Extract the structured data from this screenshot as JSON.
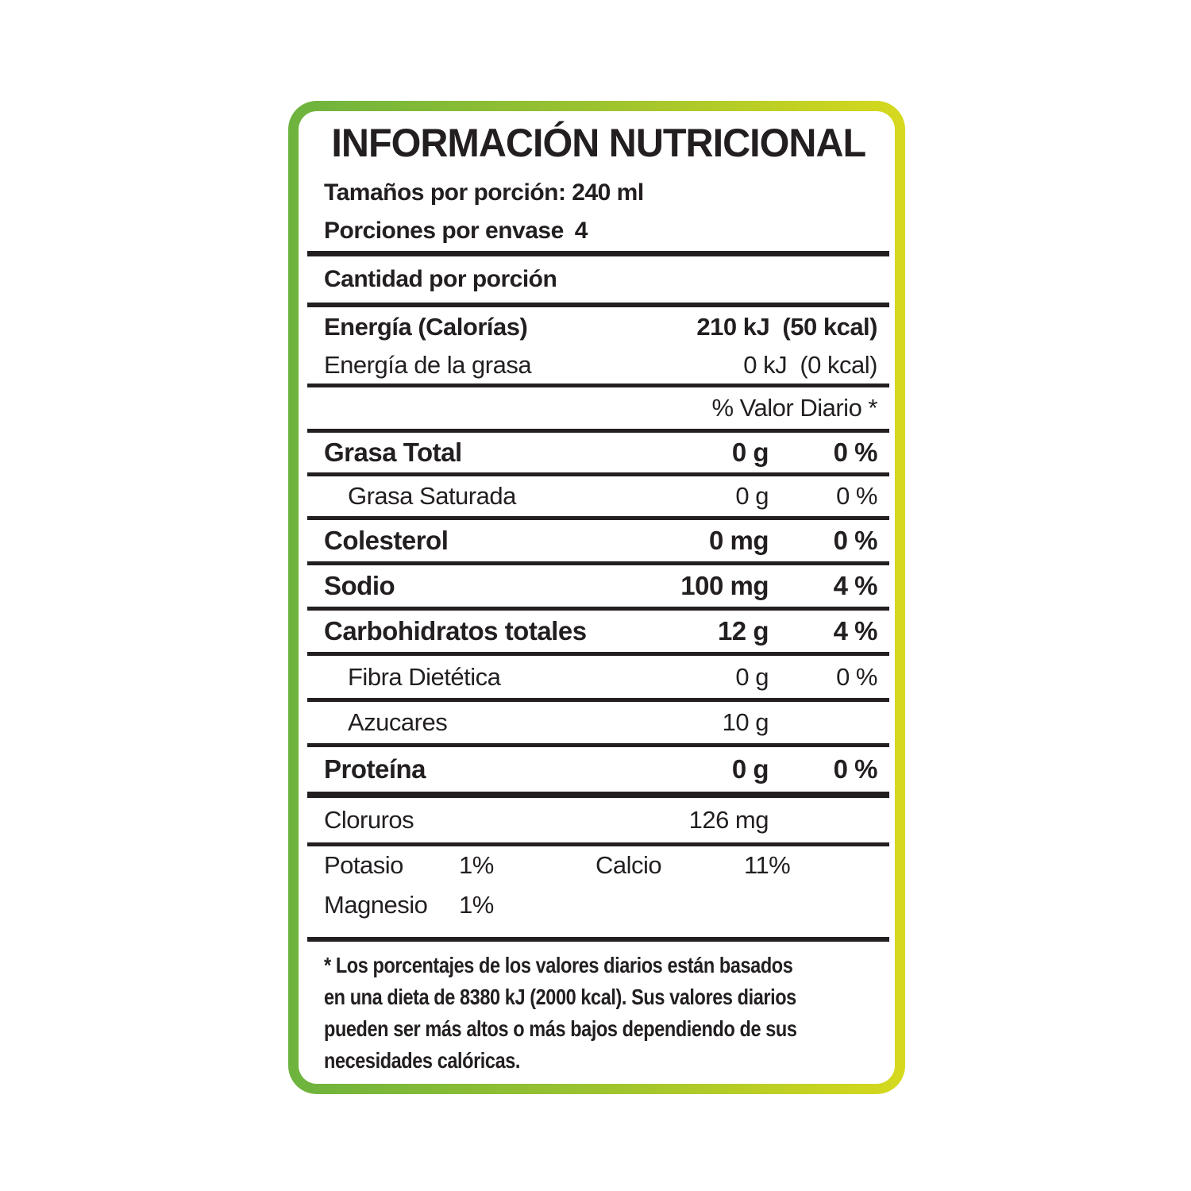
{
  "label": {
    "title": "INFORMACIÓN NUTRICIONAL",
    "serving": {
      "size_label": "Tamaños por porción: 240 ml",
      "per_container_label": "Porciones por envase",
      "per_container_value": "4"
    },
    "amount_header": "Cantidad por porción",
    "energy": {
      "name": "Energía (Calorías)",
      "value": "210 kJ  (50 kcal)"
    },
    "energy_fat": {
      "name": "Energía de la grasa",
      "value": "0 kJ  (0 kcal)"
    },
    "daily_value_header": "% Valor Diario *",
    "nutrients": [
      {
        "name": "Grasa Total",
        "amount": "0 g",
        "dv": "0 %"
      },
      {
        "name": "Grasa Saturada",
        "amount": "0 g",
        "dv": "0 %"
      },
      {
        "name": "Colesterol",
        "amount": "0 mg",
        "dv": "0 %"
      },
      {
        "name": "Sodio",
        "amount": "100 mg",
        "dv": "4 %"
      },
      {
        "name": "Carbohidratos totales",
        "amount": "12 g",
        "dv": "4 %"
      },
      {
        "name": "Fibra Dietética",
        "amount": "0 g",
        "dv": "0 %"
      },
      {
        "name": "Azucares",
        "amount": "10 g",
        "dv": ""
      },
      {
        "name": "Proteína",
        "amount": "0 g",
        "dv": "0 %"
      }
    ],
    "minerals": {
      "cloruros_name": "Cloruros",
      "cloruros_amount": "126 mg",
      "potasio_name": "Potasio",
      "potasio_value": "1%",
      "calcio_name": "Calcio",
      "calcio_value": "11%",
      "magnesio_name": "Magnesio",
      "magnesio_value": "1%"
    },
    "footnote_lines": {
      "l1": "* Los porcentajes de los valores diarios están basados",
      "l2": "en una dieta de 8380 kJ (2000 kcal). Sus valores diarios",
      "l3": "pueden ser más altos o más bajos dependiendo de sus",
      "l4": "necesidades calóricas."
    },
    "colors": {
      "border_green": "#6db33e",
      "border_yellow": "#d6d91d",
      "text_black": "#231f20"
    }
  }
}
